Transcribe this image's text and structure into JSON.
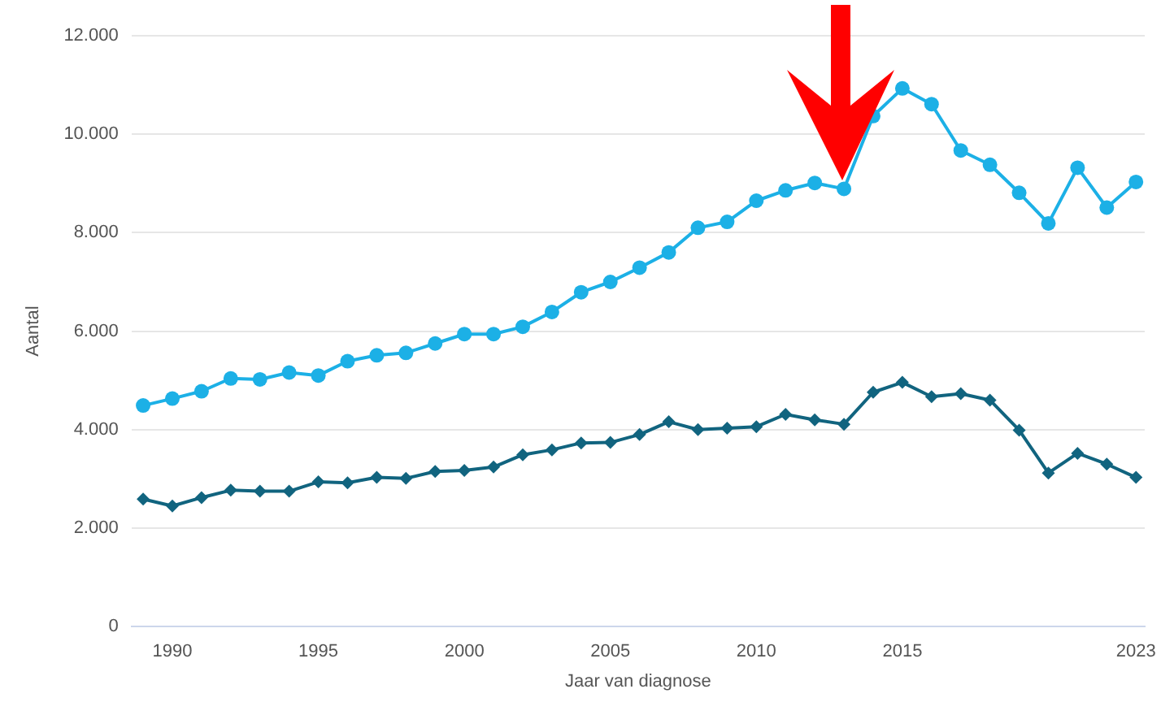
{
  "chart_data": {
    "type": "line",
    "xlabel": "Jaar van diagnose",
    "ylabel": "Aantal",
    "x": [
      1989,
      1990,
      1991,
      1992,
      1993,
      1994,
      1995,
      1996,
      1997,
      1998,
      1999,
      2000,
      2001,
      2002,
      2003,
      2004,
      2005,
      2006,
      2007,
      2008,
      2009,
      2010,
      2011,
      2012,
      2013,
      2014,
      2015,
      2016,
      2017,
      2018,
      2019,
      2020,
      2021,
      2022,
      2023
    ],
    "series": [
      {
        "color": "#1cb0e6",
        "marker": "circle",
        "values": [
          4490,
          4630,
          4780,
          5040,
          5020,
          5160,
          5100,
          5390,
          5510,
          5560,
          5750,
          5940,
          5940,
          6090,
          6390,
          6790,
          7000,
          7290,
          7600,
          8100,
          8220,
          8650,
          8860,
          9010,
          8890,
          10370,
          10930,
          10610,
          9670,
          9380,
          8810,
          8190,
          9320,
          8510,
          9030
        ]
      },
      {
        "color": "#11647f",
        "marker": "diamond",
        "values": [
          2590,
          2450,
          2620,
          2770,
          2750,
          2750,
          2940,
          2920,
          3030,
          3010,
          3150,
          3170,
          3240,
          3490,
          3590,
          3730,
          3740,
          3900,
          4160,
          4000,
          4030,
          4060,
          4310,
          4200,
          4110,
          4760,
          4960,
          4670,
          4730,
          4600,
          3990,
          3120,
          3520,
          3300,
          3030
        ]
      }
    ],
    "xlim": [
      1988.6,
      2023.3
    ],
    "xticks": [
      1990,
      1995,
      2000,
      2005,
      2010,
      2015,
      2023
    ],
    "ylim": [
      0,
      12000
    ],
    "yticks": [
      {
        "value": 0,
        "label": "0"
      },
      {
        "value": 2000,
        "label": "2.000"
      },
      {
        "value": 4000,
        "label": "4.000"
      },
      {
        "value": 6000,
        "label": "6.000"
      },
      {
        "value": 8000,
        "label": "8.000"
      },
      {
        "value": 10000,
        "label": "10.000"
      },
      {
        "value": 12000,
        "label": "12.000"
      }
    ],
    "grid": "y",
    "legend": false,
    "line_style": "solid"
  }
}
